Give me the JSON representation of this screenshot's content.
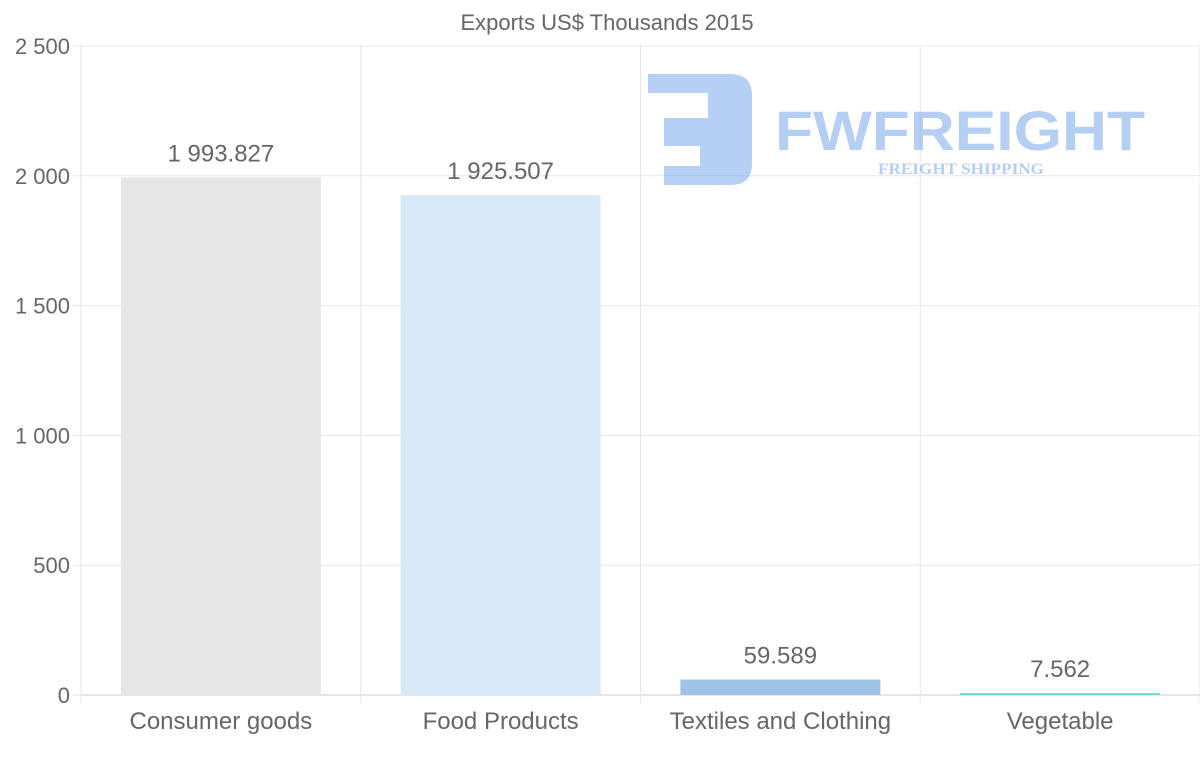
{
  "chart_data": {
    "type": "bar",
    "title": "Exports US$ Thousands 2015",
    "categories": [
      "Consumer goods",
      "Food Products",
      "Textiles and Clothing",
      "Vegetable"
    ],
    "values": [
      1993.827,
      1925.507,
      59.589,
      7.562
    ],
    "value_labels": [
      "1 993.827",
      "1 925.507",
      "59.589",
      "7.562"
    ],
    "colors": [
      "#e6e6e6",
      "#d7e8f8",
      "#9dc3e6",
      "#76d7d8"
    ],
    "ylim": [
      0,
      2500
    ],
    "yticks": [
      0,
      500,
      1000,
      1500,
      2000,
      2500
    ],
    "ytick_labels": [
      "0",
      "500",
      "1 000",
      "1 500",
      "2 000",
      "2 500"
    ],
    "xlabel": "",
    "ylabel": "",
    "grid": true,
    "legend": "none"
  },
  "watermark": {
    "brand": "FWFREIGHT",
    "tagline": "FREIGHT SHIPPING"
  }
}
